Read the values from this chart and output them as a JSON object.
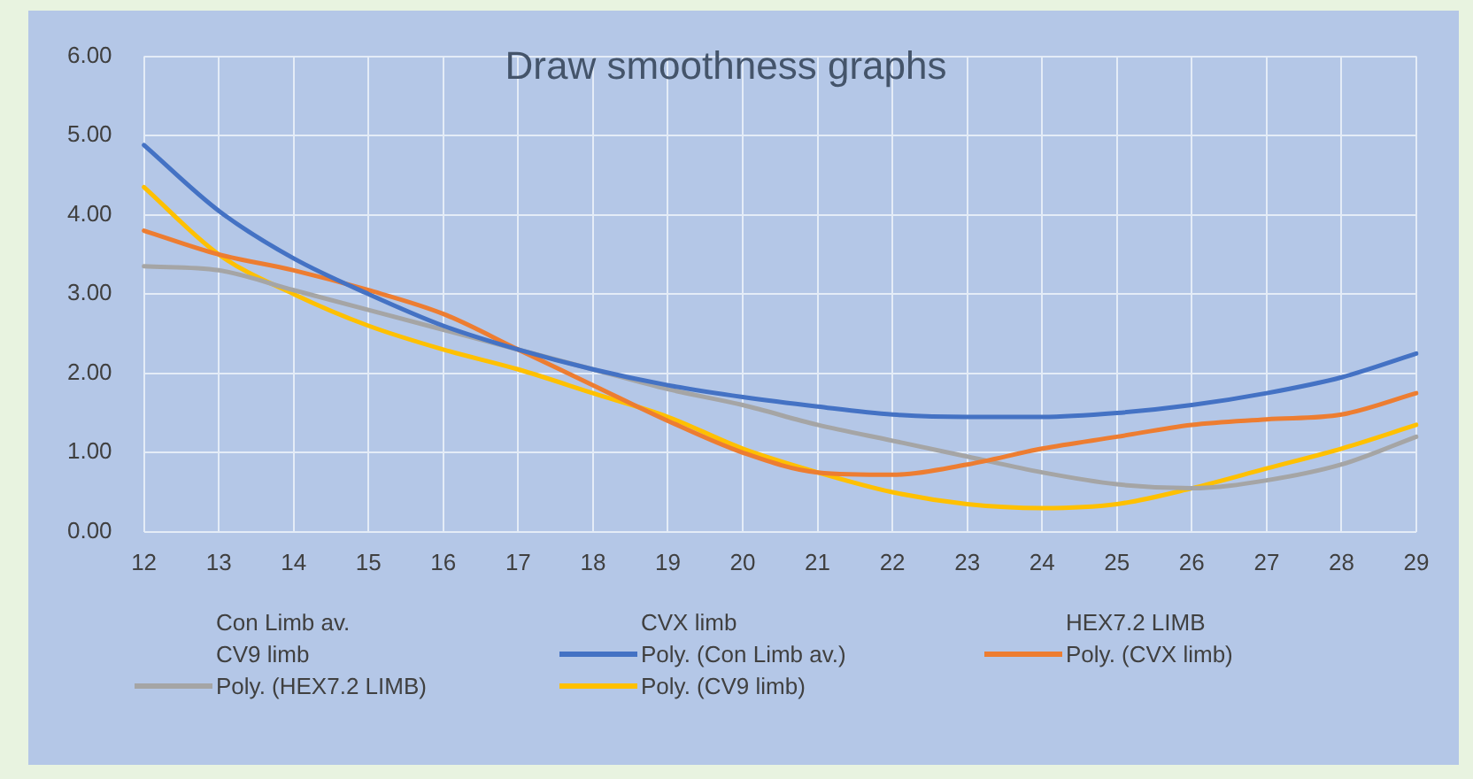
{
  "chart_data": {
    "type": "line",
    "title": "Draw smoothness graphs",
    "categories": [
      "12",
      "13",
      "14",
      "15",
      "16",
      "17",
      "18",
      "19",
      "20",
      "21",
      "22",
      "23",
      "24",
      "25",
      "26",
      "27",
      "28",
      "29"
    ],
    "ylim": [
      0,
      6
    ],
    "yticks": [
      {
        "value": 0,
        "label": "0.00"
      },
      {
        "value": 1,
        "label": "1.00"
      },
      {
        "value": 2,
        "label": "2.00"
      },
      {
        "value": 3,
        "label": "3.00"
      },
      {
        "value": 4,
        "label": "4.00"
      },
      {
        "value": 5,
        "label": "5.00"
      },
      {
        "value": 6,
        "label": "6.00"
      }
    ],
    "grid": true,
    "legend": "bottom",
    "marker": "none",
    "line_style": "solid",
    "series": [
      {
        "name": "Con Limb av.",
        "values": [
          null,
          null,
          null,
          null,
          null,
          null,
          null,
          null,
          null,
          null,
          null,
          null,
          null,
          null,
          null,
          null,
          null,
          null
        ]
      },
      {
        "name": "CVX limb",
        "values": [
          null,
          null,
          null,
          null,
          null,
          null,
          null,
          null,
          null,
          null,
          null,
          null,
          null,
          null,
          null,
          null,
          null,
          null
        ]
      },
      {
        "name": "HEX7.2 LIMB",
        "values": [
          null,
          null,
          null,
          null,
          null,
          null,
          null,
          null,
          null,
          null,
          null,
          null,
          null,
          null,
          null,
          null,
          null,
          null
        ]
      },
      {
        "name": "CV9 limb",
        "values": [
          null,
          null,
          null,
          null,
          null,
          null,
          null,
          null,
          null,
          null,
          null,
          null,
          null,
          null,
          null,
          null,
          null,
          null
        ]
      },
      {
        "name": "Poly. (Con Limb av.)",
        "color": "#4472c4",
        "values": [
          4.88,
          4.05,
          3.45,
          3.0,
          2.6,
          2.3,
          2.05,
          1.85,
          1.7,
          1.58,
          1.48,
          1.45,
          1.45,
          1.5,
          1.6,
          1.75,
          1.95,
          2.25
        ]
      },
      {
        "name": "Poly. (CVX limb)",
        "color": "#ed7d31",
        "values": [
          3.8,
          3.5,
          3.3,
          3.05,
          2.75,
          2.3,
          1.85,
          1.4,
          1.0,
          0.75,
          0.72,
          0.85,
          1.05,
          1.2,
          1.35,
          1.42,
          1.48,
          1.75
        ]
      },
      {
        "name": "Poly. (HEX7.2 LIMB)",
        "color": "#a5a5a5",
        "values": [
          3.35,
          3.3,
          3.05,
          2.8,
          2.55,
          2.3,
          2.05,
          1.8,
          1.6,
          1.35,
          1.15,
          0.95,
          0.75,
          0.6,
          0.55,
          0.65,
          0.85,
          1.2
        ]
      },
      {
        "name": "Poly. (CV9 limb)",
        "color": "#ffc000",
        "values": [
          4.35,
          3.5,
          3.0,
          2.6,
          2.3,
          2.05,
          1.75,
          1.45,
          1.05,
          0.75,
          0.5,
          0.35,
          0.3,
          0.35,
          0.55,
          0.8,
          1.05,
          1.35
        ]
      }
    ]
  }
}
